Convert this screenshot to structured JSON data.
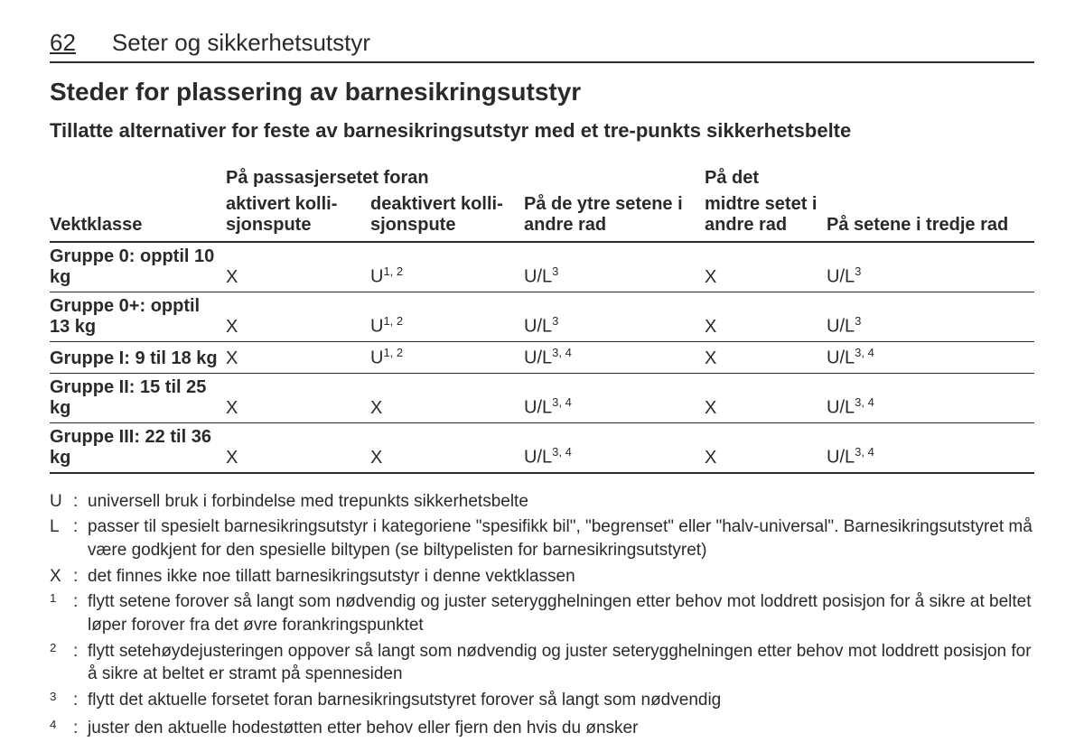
{
  "page_number": "62",
  "chapter_title": "Seter og sikkerhetsutstyr",
  "title": "Steder for plassering av barnesikringsutstyr",
  "subtitle": "Tillatte alternativer for feste av barnesikringsutstyr med et tre-punkts sikkerhetsbelte",
  "colors": {
    "text": "#2a2a2a",
    "background": "#ffffff",
    "rule": "#2a2a2a"
  },
  "table": {
    "group_header": "På passasjersetet foran",
    "headers": {
      "weight_class": "Vektklasse",
      "front_activated": "aktivert kolli­sjonspute",
      "front_deactivated": "deaktivert kolli­sjonspute",
      "row2_outer": "På de ytre setene i andre rad",
      "row2_middle_top": "På det",
      "row2_middle_bot": "midtre setet i andre rad",
      "row3": "På setene i tredje rad"
    },
    "sup_12": "1, 2",
    "sup_3": "3",
    "sup_34": "3, 4",
    "rows": [
      {
        "label": "Gruppe 0: opptil 10 kg",
        "c1": "X",
        "c2": "U",
        "c2_sup": "1, 2",
        "c3": "U/L",
        "c3_sup": "3",
        "c4": "X",
        "c5": "U/L",
        "c5_sup": "3"
      },
      {
        "label": "Gruppe 0+: opptil 13 kg",
        "c1": "X",
        "c2": "U",
        "c2_sup": "1, 2",
        "c3": "U/L",
        "c3_sup": "3",
        "c4": "X",
        "c5": "U/L",
        "c5_sup": "3"
      },
      {
        "label": "Gruppe I: 9 til 18 kg",
        "c1": "X",
        "c2": "U",
        "c2_sup": "1, 2",
        "c3": "U/L",
        "c3_sup": "3, 4",
        "c4": "X",
        "c5": "U/L",
        "c5_sup": "3, 4"
      },
      {
        "label": "Gruppe II: 15 til 25 kg",
        "c1": "X",
        "c2": "X",
        "c2_sup": "",
        "c3": "U/L",
        "c3_sup": "3, 4",
        "c4": "X",
        "c5": "U/L",
        "c5_sup": "3, 4"
      },
      {
        "label": "Gruppe III: 22 til 36 kg",
        "c1": "X",
        "c2": "X",
        "c2_sup": "",
        "c3": "U/L",
        "c3_sup": "3, 4",
        "c4": "X",
        "c5": "U/L",
        "c5_sup": "3, 4"
      }
    ]
  },
  "legend": [
    {
      "key": "U",
      "colon": ":",
      "text": "universell bruk i forbindelse med trepunkts sikkerhetsbelte"
    },
    {
      "key": "L",
      "colon": ":",
      "text": "passer til spesielt barnesikringsutstyr i kategoriene \"spesifikk bil\", \"begrenset\" eller \"halv-universal\". Barnesikrings­utstyret må være godkjent for den spesielle biltypen (se biltypelisten for barnesikringsutstyret)"
    },
    {
      "key": "X",
      "colon": ":",
      "text": "det finnes ikke noe tillatt barnesikringsutstyr i denne vektklassen"
    },
    {
      "key": "1",
      "colon": ":",
      "text": "flytt setene forover så langt som nødvendig og juster seterygghelningen etter behov mot loddrett posisjon for å sikre at beltet løper forover fra det øvre forankringspunktet",
      "sup": true
    },
    {
      "key": "2",
      "colon": ":",
      "text": "flytt setehøydejusteringen oppover så langt som nødvendig og juster seterygghelningen etter behov mot loddrett posisjon for å sikre at beltet er stramt på spennesiden",
      "sup": true
    },
    {
      "key": "3",
      "colon": ":",
      "text": "flytt det aktuelle forsetet foran barnesikringsutstyret forover så langt som nødvendig",
      "sup": true
    },
    {
      "key": "4",
      "colon": ":",
      "text": "juster den aktuelle hodestøtten etter behov eller fjern den hvis du ønsker",
      "sup": true
    }
  ]
}
